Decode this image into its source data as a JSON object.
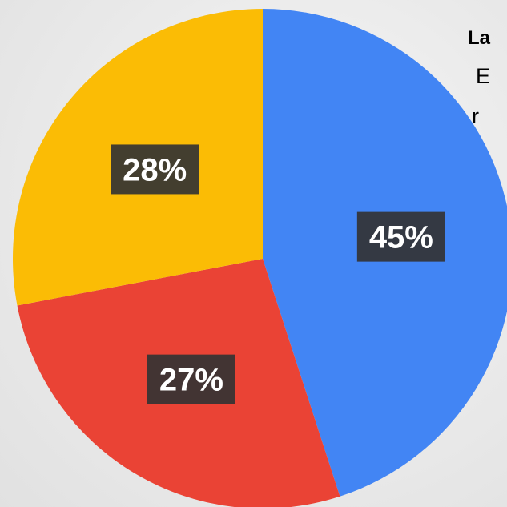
{
  "chart_data": {
    "type": "pie",
    "slices": [
      {
        "label": "45%",
        "value": 45,
        "color": "#4285F4"
      },
      {
        "label": "27%",
        "value": 27,
        "color": "#EA4335"
      },
      {
        "label": "28%",
        "value": 28,
        "color": "#FBBC05"
      }
    ]
  },
  "side_text": {
    "title": "La",
    "line1": "E",
    "line2": "r"
  }
}
